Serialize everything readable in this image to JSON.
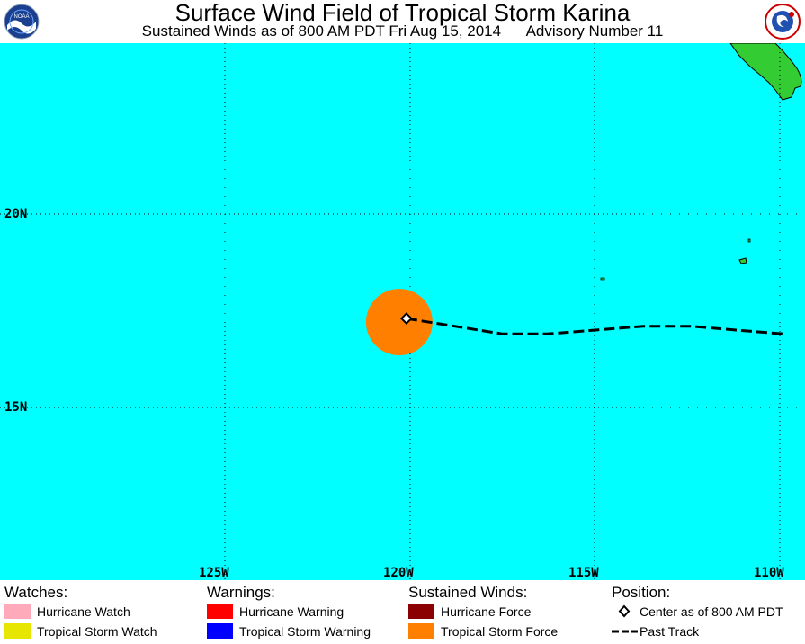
{
  "header": {
    "title": "Surface Wind Field of Tropical Storm Karina",
    "subtitle_left": "Sustained Winds as of 800 AM PDT Fri Aug 15, 2014",
    "subtitle_right": "Advisory Number 11",
    "left_logo": "noaa-logo",
    "left_logo_text": "NOAA",
    "right_logo": "nws-logo",
    "right_logo_text": "NATIONAL WEATHER SERVICE"
  },
  "map": {
    "lat_labels": [
      "20N",
      "15N"
    ],
    "lon_labels": [
      "125W",
      "120W",
      "115W",
      "110W"
    ],
    "colors": {
      "ocean": "#00ffff",
      "land": "#33cc33",
      "grid": "#000000",
      "tropical_storm_force": "#ff8000",
      "track": "#000000"
    },
    "storm": {
      "name": "Karina",
      "center": {
        "lat": 17.3,
        "lon": -120.1
      },
      "wind_field": "tropical_storm_force",
      "past_track": [
        {
          "lat": 17.3,
          "lon": -120.1
        },
        {
          "lat": 17.1,
          "lon": -118.8
        },
        {
          "lat": 16.9,
          "lon": -117.5
        },
        {
          "lat": 16.9,
          "lon": -116.3
        },
        {
          "lat": 17.0,
          "lon": -115.0
        },
        {
          "lat": 17.1,
          "lon": -113.7
        },
        {
          "lat": 17.1,
          "lon": -112.4
        },
        {
          "lat": 17.0,
          "lon": -111.2
        },
        {
          "lat": 16.9,
          "lon": -109.9
        }
      ]
    }
  },
  "legend": {
    "watches": {
      "heading": "Watches:",
      "items": [
        {
          "label": "Hurricane Watch",
          "color": "#ffaabb"
        },
        {
          "label": "Tropical Storm Watch",
          "color": "#e6e600"
        }
      ]
    },
    "warnings": {
      "heading": "Warnings:",
      "items": [
        {
          "label": "Hurricane Warning",
          "color": "#ff0000"
        },
        {
          "label": "Tropical Storm Warning",
          "color": "#0000ff"
        }
      ]
    },
    "winds": {
      "heading": "Sustained Winds:",
      "items": [
        {
          "label": "Hurricane Force",
          "color": "#8b0000"
        },
        {
          "label": "Tropical Storm Force",
          "color": "#ff8000"
        }
      ]
    },
    "position": {
      "heading": "Position:",
      "items": [
        {
          "label": "Center as of 800 AM PDT",
          "icon": "diamond-icon"
        },
        {
          "label": "Past Track",
          "icon": "dashed-line-icon"
        }
      ]
    }
  }
}
